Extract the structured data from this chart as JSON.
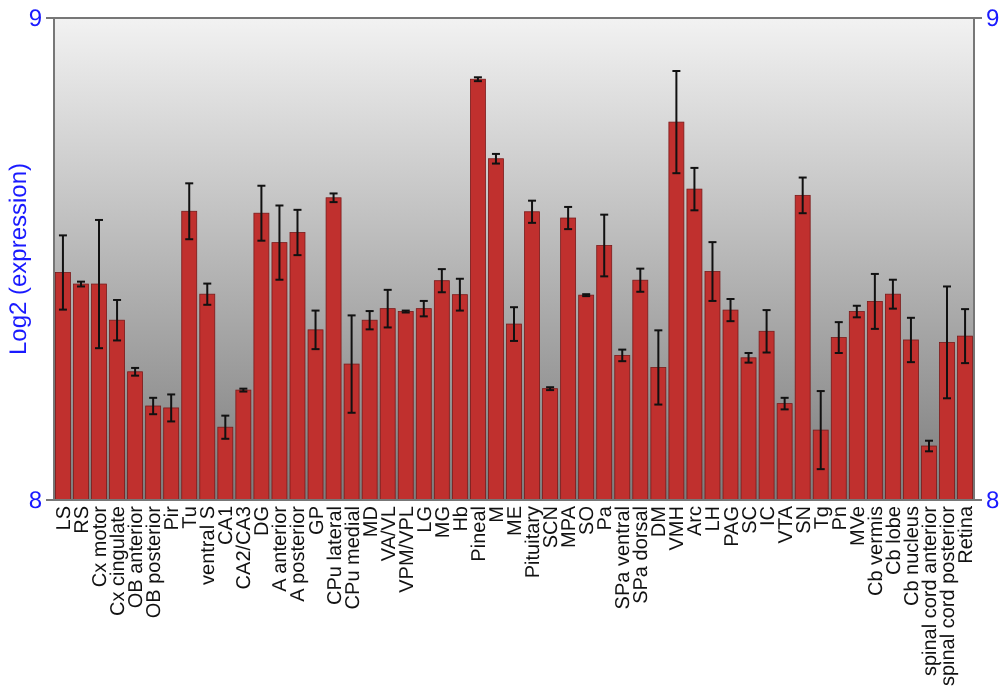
{
  "chart_data": {
    "type": "bar",
    "ylabel": "Log2 (expression)",
    "categories": [
      "LS",
      "RS",
      "Cx motor",
      "Cx cingulate",
      "OB anterior",
      "OB posterior",
      "Pir",
      "Tu",
      "ventral S",
      "CA1",
      "CA2/CA3",
      "DG",
      "A anterior",
      "A posterior",
      "GP",
      "CPu lateral",
      "CPu medial",
      "MD",
      "VA/VL",
      "VPM/VPL",
      "LG",
      "MG",
      "Hb",
      "Pineal",
      "M",
      "ME",
      "Pituitary",
      "SCN",
      "MPA",
      "SO",
      "Pa",
      "SPa ventral",
      "SPa dorsal",
      "DM",
      "VMH",
      "Arc",
      "LH",
      "PAG",
      "SC",
      "IC",
      "VTA",
      "SN",
      "Tg",
      "Pn",
      "MVe",
      "Cb vermis",
      "Cb lobe",
      "Cb nucleus",
      "spinal cord anterior",
      "spinal cord posterior",
      "Retina"
    ],
    "series": [
      {
        "color": "#c0302e",
        "values": [
          8.472,
          8.448,
          8.448,
          8.373,
          8.266,
          8.195,
          8.191,
          8.599,
          8.427,
          8.151,
          8.228,
          8.595,
          8.534,
          8.555,
          8.353,
          8.627,
          8.282,
          8.373,
          8.397,
          8.391,
          8.397,
          8.455,
          8.426,
          8.873,
          8.708,
          8.365,
          8.598,
          8.231,
          8.585,
          8.425,
          8.528,
          8.3,
          8.456,
          8.275,
          8.784,
          8.645,
          8.474,
          8.394,
          8.295,
          8.35,
          8.2,
          8.632,
          8.145,
          8.337,
          8.391,
          8.412,
          8.427,
          8.332,
          8.112,
          8.327,
          8.34
        ],
        "errors": [
          0.077,
          0.005,
          0.133,
          0.042,
          0.008,
          0.017,
          0.028,
          0.058,
          0.022,
          0.024,
          0.003,
          0.057,
          0.077,
          0.047,
          0.04,
          0.009,
          0.101,
          0.019,
          0.039,
          0.002,
          0.016,
          0.024,
          0.033,
          0.004,
          0.01,
          0.035,
          0.023,
          0.003,
          0.023,
          0.002,
          0.064,
          0.012,
          0.024,
          0.077,
          0.106,
          0.044,
          0.061,
          0.023,
          0.01,
          0.044,
          0.012,
          0.037,
          0.081,
          0.032,
          0.012,
          0.057,
          0.03,
          0.046,
          0.011,
          0.116,
          0.056
        ]
      }
    ],
    "ylim": [
      8,
      9
    ],
    "yticks": [
      8,
      9
    ],
    "y2lim": [
      8,
      9
    ],
    "y2ticks": [
      8,
      9
    ]
  }
}
